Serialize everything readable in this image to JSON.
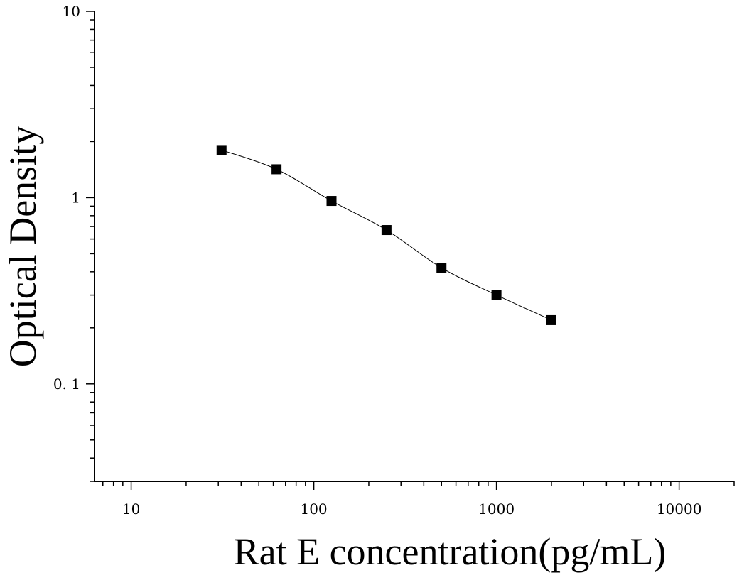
{
  "chart_data": {
    "type": "scatter",
    "xlabel": "Rat E concentration(pg/mL)",
    "ylabel": "Optical Density",
    "x_scale": "log",
    "y_scale": "log",
    "xlim": [
      6.3,
      20000
    ],
    "ylim": [
      0.03,
      10
    ],
    "x_tick_labels": [
      "10",
      "100",
      "1000",
      "10000"
    ],
    "x_ticks": [
      10,
      100,
      1000,
      10000
    ],
    "y_tick_labels": [
      "0. 1",
      "1",
      "10"
    ],
    "y_ticks": [
      0.1,
      1,
      10
    ],
    "grid": false,
    "series": [
      {
        "marker": "square",
        "color": "#000000",
        "fit_curve": true,
        "x": [
          31.25,
          62.5,
          125,
          250,
          500,
          1000,
          2000
        ],
        "y": [
          1.8,
          1.42,
          0.96,
          0.67,
          0.42,
          0.3,
          0.22
        ]
      }
    ]
  }
}
